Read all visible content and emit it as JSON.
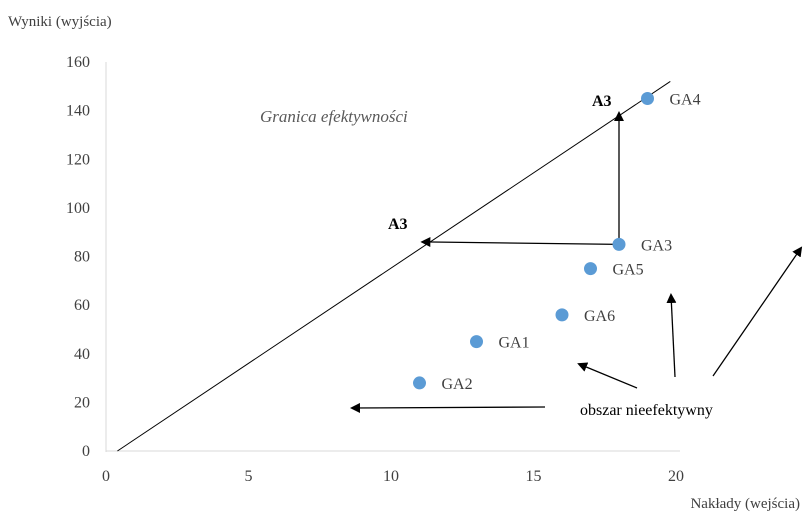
{
  "chart_data": {
    "type": "scatter",
    "title": "",
    "xlabel": "Nakłady (wejścia)",
    "ylabel": "Wyniki (wyjścia)",
    "xlim": [
      0,
      20
    ],
    "ylim": [
      0,
      160
    ],
    "x_ticks": [
      "0",
      "5",
      "10",
      "15",
      "20"
    ],
    "y_ticks": [
      "0",
      "20",
      "40",
      "60",
      "80",
      "100",
      "120",
      "140",
      "160"
    ],
    "grid": false,
    "legend": "none",
    "point_color": "#5B9BD5",
    "points": [
      {
        "label": "GA1",
        "x": 13,
        "y": 45
      },
      {
        "label": "GA2",
        "x": 11,
        "y": 28
      },
      {
        "label": "GA3",
        "x": 18,
        "y": 85
      },
      {
        "label": "GA4",
        "x": 19,
        "y": 145
      },
      {
        "label": "GA5",
        "x": 17,
        "y": 75
      },
      {
        "label": "GA6",
        "x": 16,
        "y": 56
      }
    ],
    "frontier": {
      "label": "Granica efektywności",
      "from": {
        "x": 0.4,
        "y": 0
      },
      "to": {
        "x": 19.8,
        "y": 152
      }
    },
    "annotations": {
      "a3_vertical": {
        "label": "A3",
        "from": {
          "x": 18,
          "y": 85
        },
        "to": {
          "x": 18,
          "y": 139
        }
      },
      "a3_horizontal": {
        "label": "A3",
        "from": {
          "x": 18,
          "y": 85
        },
        "to": {
          "x": 11.1,
          "y": 86
        }
      },
      "inefficient_region": {
        "label": "obszar nieefektywny"
      }
    }
  }
}
